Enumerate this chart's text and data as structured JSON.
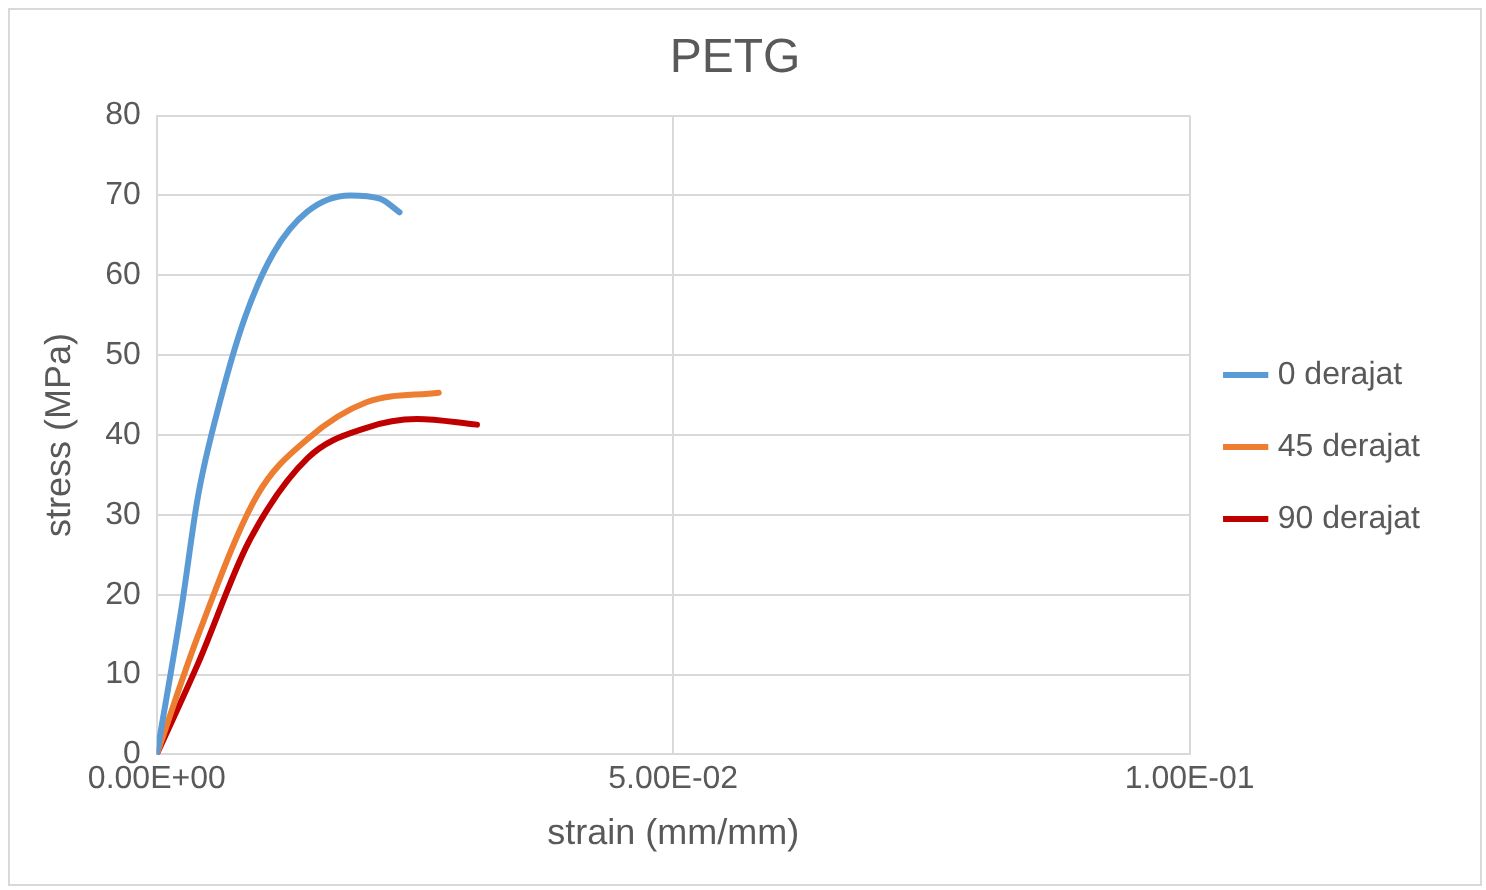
{
  "chart_data": {
    "type": "line",
    "title": "PETG",
    "xlabel": "strain (mm/mm)",
    "ylabel": "stress (MPa)",
    "xlim": [
      0,
      0.1
    ],
    "xticks": [
      {
        "value": 0,
        "label": "0.00E+00"
      },
      {
        "value": 0.05,
        "label": "5.00E-02"
      },
      {
        "value": 0.1,
        "label": "1.00E-01"
      }
    ],
    "ylim": [
      0,
      80
    ],
    "yticks": [
      0,
      10,
      20,
      30,
      40,
      50,
      60,
      70,
      80
    ],
    "grid": true,
    "legend": "right",
    "marker": "none",
    "series": [
      {
        "name": "0 derajat",
        "color": "#5b9bd5",
        "x": [
          0,
          0.0024,
          0.004,
          0.0061,
          0.0085,
          0.0113,
          0.0146,
          0.0187,
          0.0216,
          0.0235
        ],
        "values": [
          0,
          18.4,
          32.4,
          44.1,
          54.6,
          62.8,
          68,
          70,
          69.6,
          67.9
        ]
      },
      {
        "name": "45 derajat",
        "color": "#ed7d31",
        "x": [
          0,
          0.004,
          0.0097,
          0.0146,
          0.0203,
          0.0273
        ],
        "values": [
          0,
          14.9,
          32.4,
          39.5,
          44.1,
          45.3
        ]
      },
      {
        "name": "90 derajat",
        "color": "#c00000",
        "x": [
          0,
          0.004,
          0.0089,
          0.0146,
          0.0203,
          0.0252,
          0.031
        ],
        "values": [
          0,
          11.4,
          26.6,
          37.1,
          40.9,
          42,
          41.3
        ]
      }
    ]
  }
}
